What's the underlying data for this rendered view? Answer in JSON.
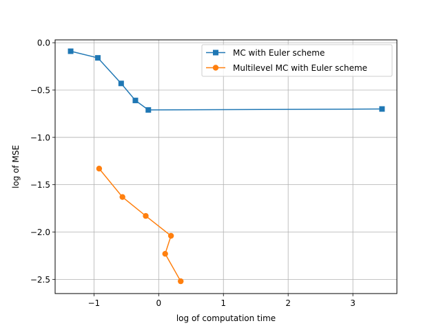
{
  "chart_data": {
    "type": "line",
    "xlabel": "log of computation time",
    "ylabel": "log of MSE",
    "xlim": [
      -1.6,
      3.68
    ],
    "ylim": [
      -2.65,
      0.03
    ],
    "grid": true,
    "legend_position": "top-right",
    "xticks": [
      -1,
      0,
      1,
      2,
      3
    ],
    "xtick_labels": [
      "−1",
      "0",
      "1",
      "2",
      "3"
    ],
    "yticks": [
      0.0,
      -0.5,
      -1.0,
      -1.5,
      -2.0,
      -2.5
    ],
    "ytick_labels": [
      "0.0",
      "−0.5",
      "−1.0",
      "−1.5",
      "−2.0",
      "−2.5"
    ],
    "series": [
      {
        "name": "MC with Euler scheme",
        "color": "#1f77b4",
        "marker": "square",
        "x": [
          -1.36,
          -0.94,
          -0.58,
          -0.36,
          -0.16,
          3.45
        ],
        "y": [
          -0.09,
          -0.16,
          -0.43,
          -0.61,
          -0.71,
          -0.7
        ]
      },
      {
        "name": "Multilevel MC with Euler scheme",
        "color": "#ff7f0e",
        "marker": "circle",
        "x": [
          -0.92,
          -0.56,
          -0.2,
          0.19,
          0.1,
          0.34
        ],
        "y": [
          -1.33,
          -1.63,
          -1.83,
          -2.04,
          -2.23,
          -2.52
        ]
      }
    ]
  }
}
